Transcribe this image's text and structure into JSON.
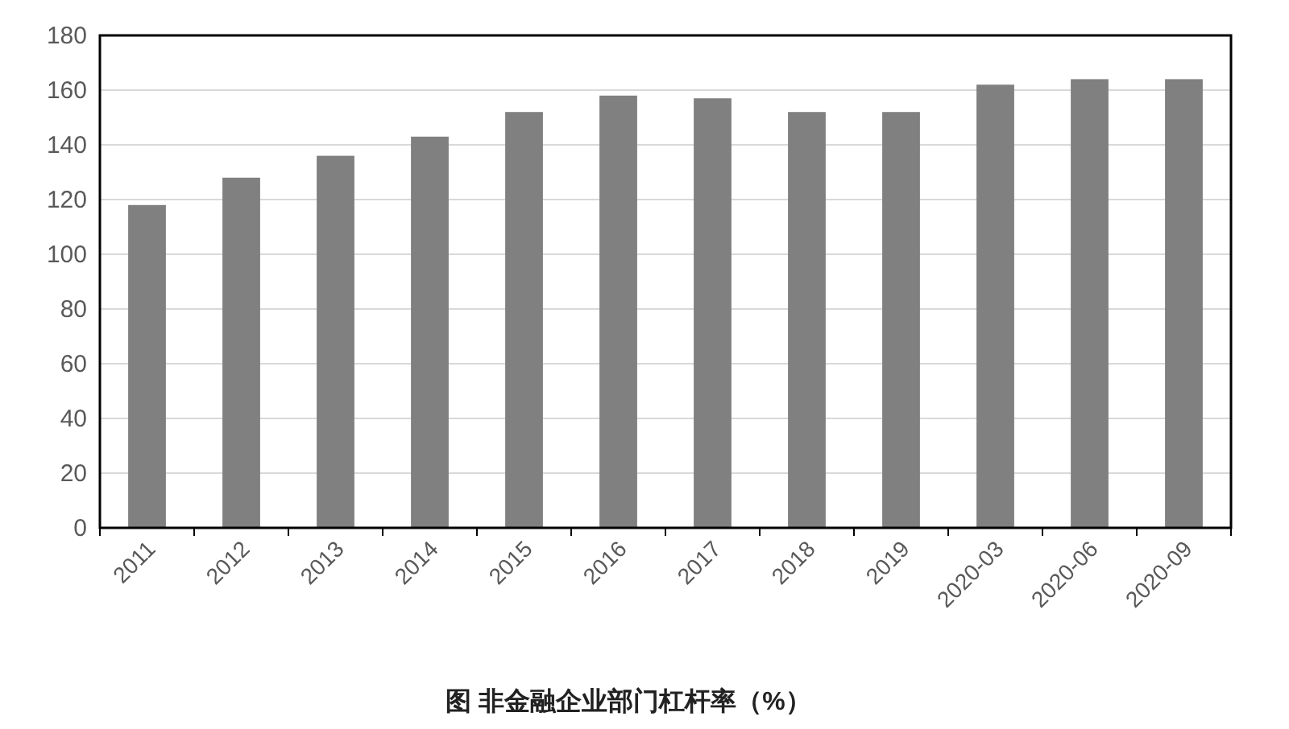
{
  "chart_data": {
    "type": "bar",
    "title": "图  非金融企业部门杠杆率（%）",
    "categories": [
      "2011",
      "2012",
      "2013",
      "2014",
      "2015",
      "2016",
      "2017",
      "2018",
      "2019",
      "2020-03",
      "2020-06",
      "2020-09"
    ],
    "values": [
      118,
      128,
      136,
      143,
      152,
      158,
      157,
      152,
      152,
      162,
      164,
      164
    ],
    "color": "#808080",
    "ylim": [
      0,
      180
    ],
    "yticks": [
      0,
      20,
      40,
      60,
      80,
      100,
      120,
      140,
      160,
      180
    ],
    "grid": "y"
  }
}
